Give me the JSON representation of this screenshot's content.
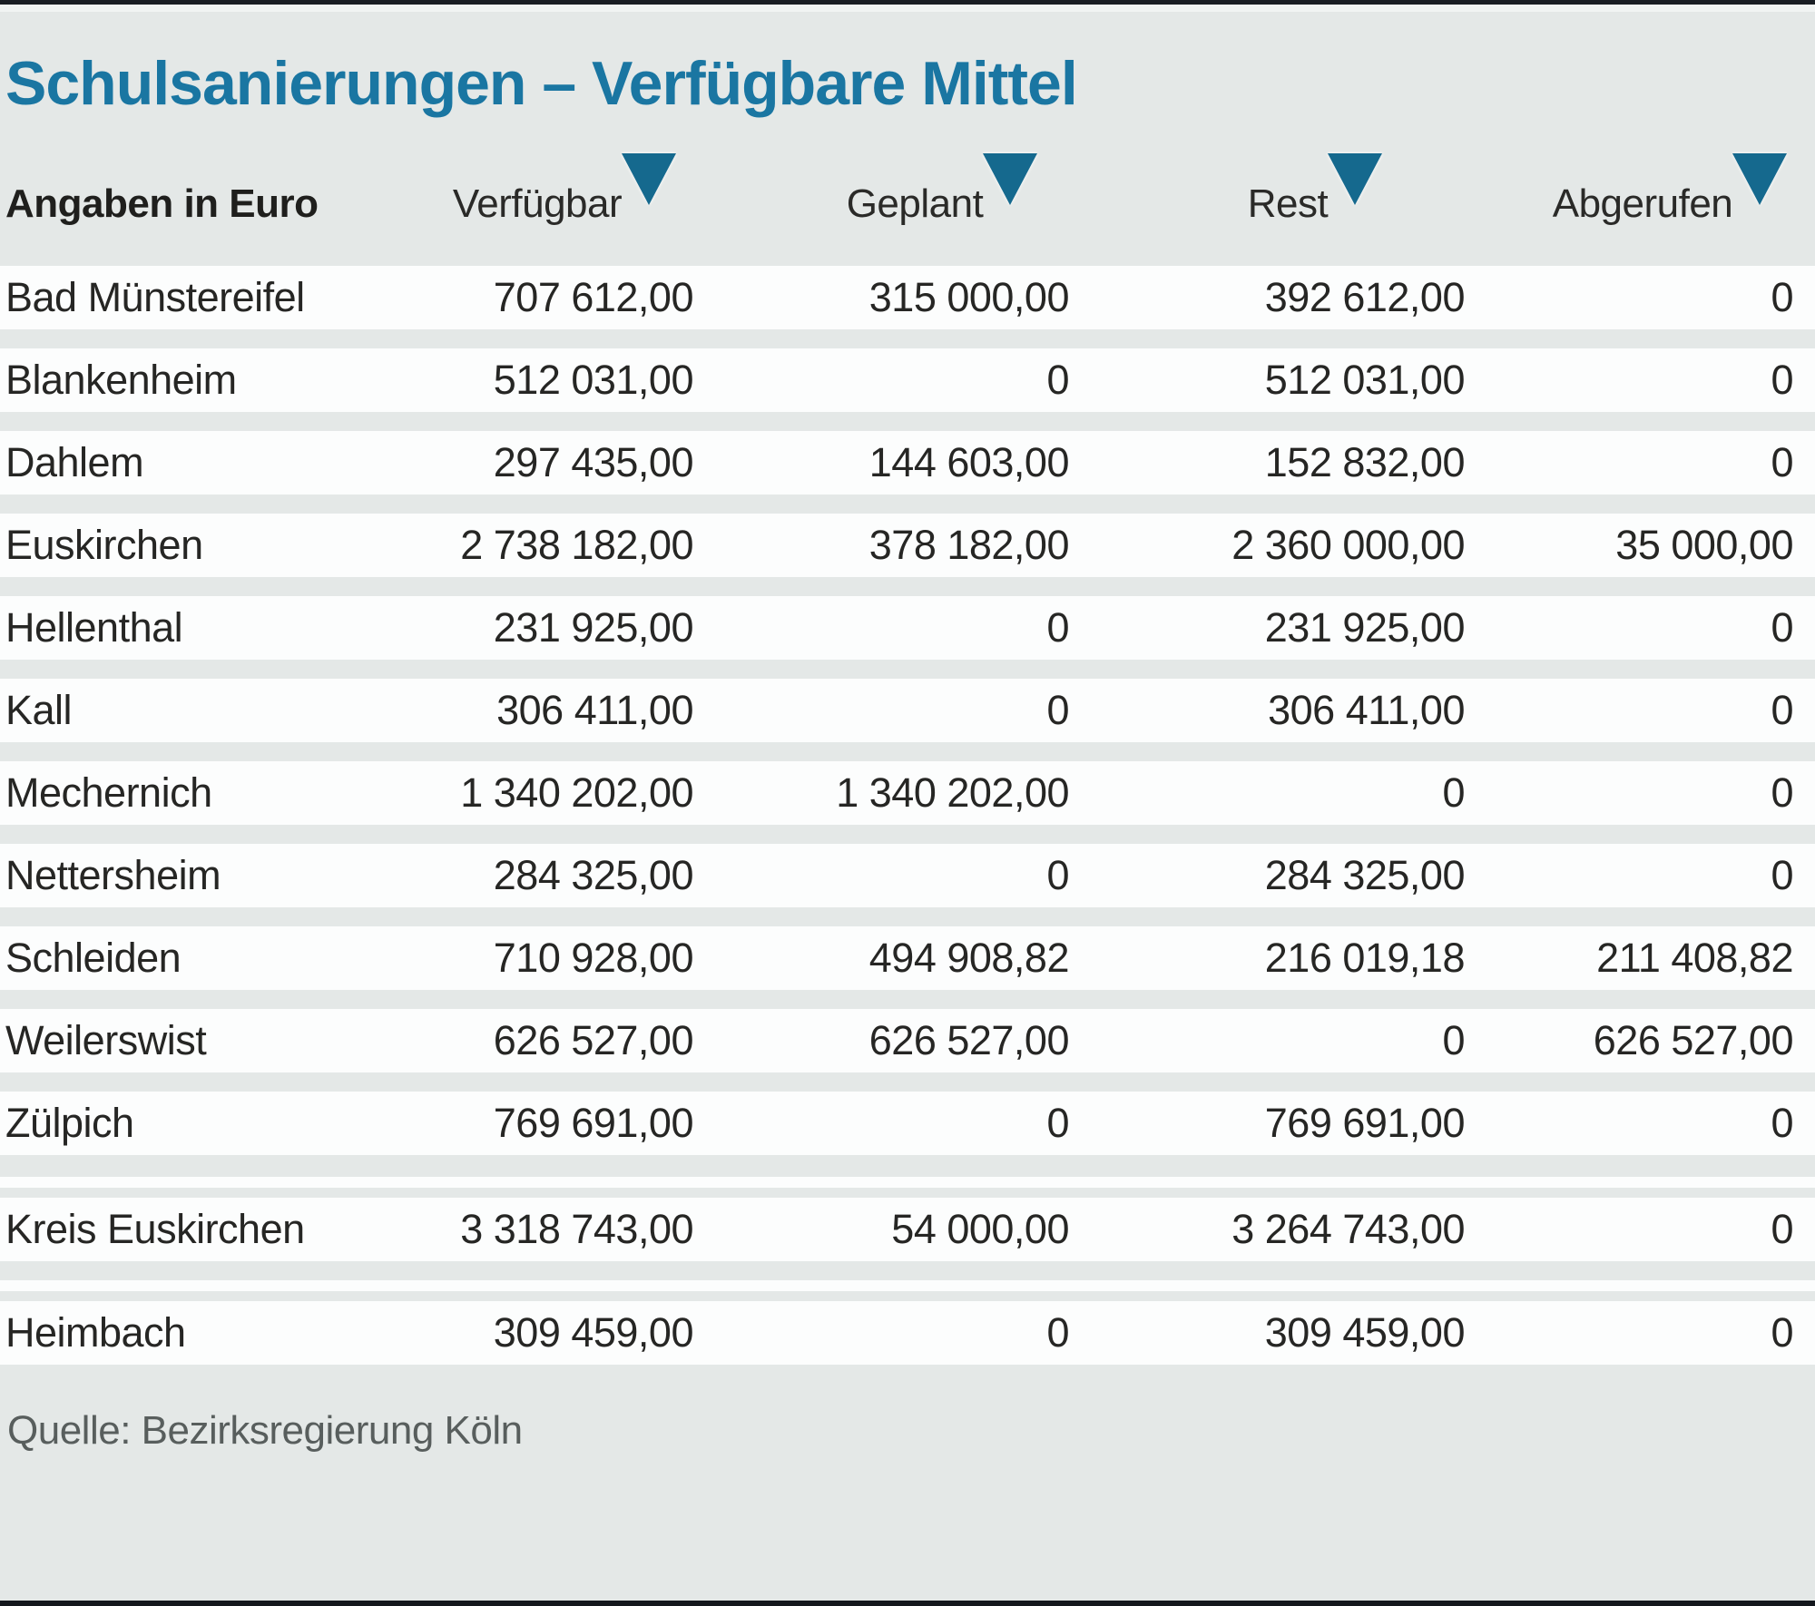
{
  "title": "Schulsanierungen – Verfügbare Mittel",
  "table": {
    "units_label": "Angaben in Euro",
    "columns": [
      {
        "label": "Verfügbar",
        "icon": "sort-triangle-down"
      },
      {
        "label": "Geplant",
        "icon": "sort-triangle-down"
      },
      {
        "label": "Rest",
        "icon": "sort-triangle-down"
      },
      {
        "label": "Abgerufen",
        "icon": "sort-triangle-down"
      }
    ],
    "rows": [
      {
        "name": "Bad Münstereifel",
        "values": [
          "707 612,00",
          "315 000,00",
          "392 612,00",
          "0"
        ]
      },
      {
        "name": "Blankenheim",
        "values": [
          "512 031,00",
          "0",
          "512 031,00",
          "0"
        ]
      },
      {
        "name": "Dahlem",
        "values": [
          "297 435,00",
          "144 603,00",
          "152 832,00",
          "0"
        ]
      },
      {
        "name": "Euskirchen",
        "values": [
          "2 738 182,00",
          "378 182,00",
          "2 360 000,00",
          "35 000,00"
        ]
      },
      {
        "name": "Hellenthal",
        "values": [
          "231 925,00",
          "0",
          "231 925,00",
          "0"
        ]
      },
      {
        "name": "Kall",
        "values": [
          "306 411,00",
          "0",
          "306 411,00",
          "0"
        ]
      },
      {
        "name": "Mechernich",
        "values": [
          "1 340 202,00",
          "1 340 202,00",
          "0",
          "0"
        ]
      },
      {
        "name": "Nettersheim",
        "values": [
          "284 325,00",
          "0",
          "284 325,00",
          "0"
        ]
      },
      {
        "name": "Schleiden",
        "values": [
          "710 928,00",
          "494 908,82",
          "216 019,18",
          "211 408,82"
        ]
      },
      {
        "name": "Weilerswist",
        "values": [
          "626 527,00",
          "626 527,00",
          "0",
          "626 527,00"
        ]
      },
      {
        "name": "Zülpich",
        "values": [
          "769 691,00",
          "0",
          "769 691,00",
          "0"
        ]
      },
      {
        "spacer": true
      },
      {
        "name": "Kreis Euskirchen",
        "values": [
          "3 318 743,00",
          "54 000,00",
          "3 264 743,00",
          "0"
        ]
      },
      {
        "spacer": true,
        "small": true
      },
      {
        "name": "Heimbach",
        "values": [
          "309 459,00",
          "0",
          "309 459,00",
          "0"
        ]
      }
    ]
  },
  "footer": {
    "source": "Quelle: Bezirksregierung Köln"
  },
  "colors": {
    "background": "#e4e8e7",
    "row_background": "#fcfdfd",
    "title_accent": "#1a76a2",
    "icon_accent": "#15698e",
    "text": "#262624",
    "muted_text": "#585e5d",
    "rule": "#14181d"
  },
  "chart_data": {
    "type": "table",
    "title": "Schulsanierungen – Verfügbare Mittel",
    "units": "Euro",
    "columns": [
      "Verfügbar",
      "Geplant",
      "Rest",
      "Abgerufen"
    ],
    "rows": [
      {
        "name": "Bad Münstereifel",
        "verfuegbar": 707612.0,
        "geplant": 315000.0,
        "rest": 392612.0,
        "abgerufen": 0
      },
      {
        "name": "Blankenheim",
        "verfuegbar": 512031.0,
        "geplant": 0,
        "rest": 512031.0,
        "abgerufen": 0
      },
      {
        "name": "Dahlem",
        "verfuegbar": 297435.0,
        "geplant": 144603.0,
        "rest": 152832.0,
        "abgerufen": 0
      },
      {
        "name": "Euskirchen",
        "verfuegbar": 2738182.0,
        "geplant": 378182.0,
        "rest": 2360000.0,
        "abgerufen": 35000.0
      },
      {
        "name": "Hellenthal",
        "verfuegbar": 231925.0,
        "geplant": 0,
        "rest": 231925.0,
        "abgerufen": 0
      },
      {
        "name": "Kall",
        "verfuegbar": 306411.0,
        "geplant": 0,
        "rest": 306411.0,
        "abgerufen": 0
      },
      {
        "name": "Mechernich",
        "verfuegbar": 1340202.0,
        "geplant": 1340202.0,
        "rest": 0,
        "abgerufen": 0
      },
      {
        "name": "Nettersheim",
        "verfuegbar": 284325.0,
        "geplant": 0,
        "rest": 284325.0,
        "abgerufen": 0
      },
      {
        "name": "Schleiden",
        "verfuegbar": 710928.0,
        "geplant": 494908.82,
        "rest": 216019.18,
        "abgerufen": 211408.82
      },
      {
        "name": "Weilerswist",
        "verfuegbar": 626527.0,
        "geplant": 626527.0,
        "rest": 0,
        "abgerufen": 626527.0
      },
      {
        "name": "Zülpich",
        "verfuegbar": 769691.0,
        "geplant": 0,
        "rest": 769691.0,
        "abgerufen": 0
      },
      {
        "name": "Kreis Euskirchen",
        "verfuegbar": 3318743.0,
        "geplant": 54000.0,
        "rest": 3264743.0,
        "abgerufen": 0
      },
      {
        "name": "Heimbach",
        "verfuegbar": 309459.0,
        "geplant": 0,
        "rest": 309459.0,
        "abgerufen": 0
      }
    ],
    "source": "Quelle: Bezirksregierung Köln"
  }
}
